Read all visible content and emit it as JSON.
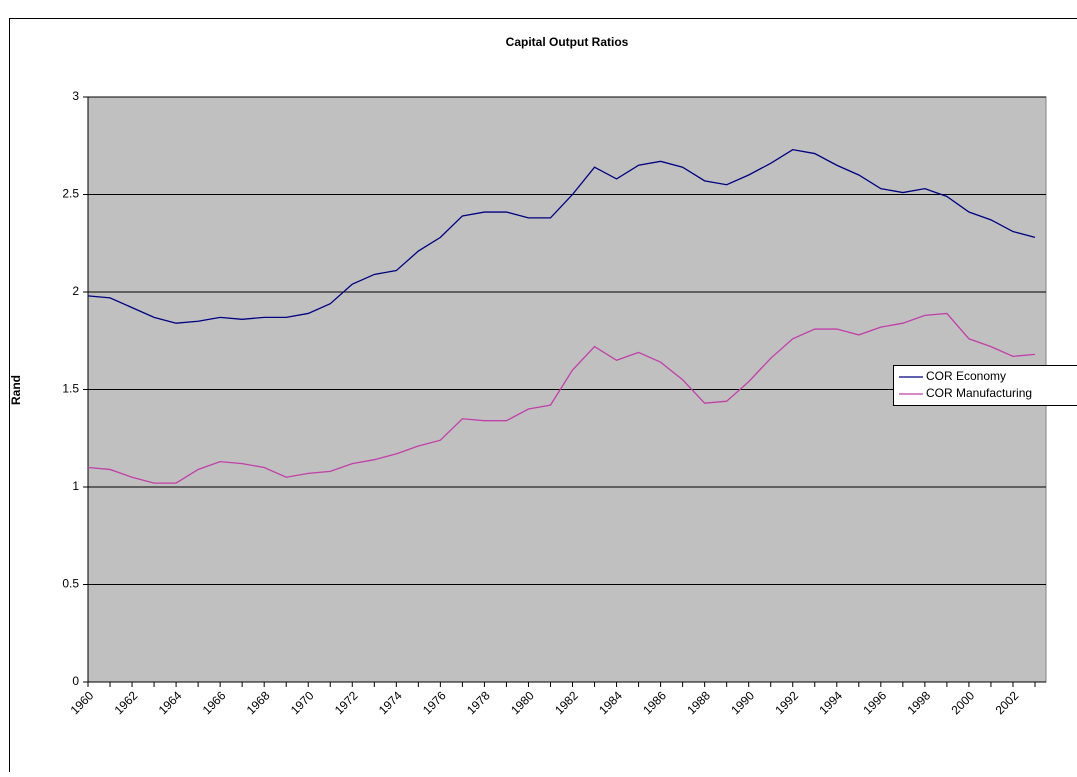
{
  "chart_data": {
    "type": "line",
    "title": "Capital Output Ratios",
    "y_label": "Rand",
    "categories": [
      "1960",
      null,
      "1962",
      null,
      "1964",
      null,
      "1966",
      null,
      "1968",
      null,
      "1970",
      null,
      "1972",
      null,
      "1974",
      null,
      "1976",
      null,
      "1978",
      null,
      "1980",
      null,
      "1982",
      null,
      "1984",
      null,
      "1986",
      null,
      "1988",
      null,
      "1990",
      null,
      "1992",
      null,
      "1994",
      null,
      "1996",
      null,
      "1998",
      null,
      "2000",
      null,
      "2002",
      null
    ],
    "series": [
      {
        "name": "COR Economy",
        "color": "#000080",
        "values": [
          1.98,
          1.97,
          1.92,
          1.87,
          1.84,
          1.85,
          1.87,
          1.86,
          1.87,
          1.87,
          1.89,
          1.94,
          2.04,
          2.09,
          2.11,
          2.21,
          2.28,
          2.39,
          2.41,
          2.41,
          2.38,
          2.38,
          2.5,
          2.64,
          2.58,
          2.65,
          2.67,
          2.64,
          2.57,
          2.55,
          2.6,
          2.66,
          2.73,
          2.71,
          2.65,
          2.6,
          2.53,
          2.51,
          2.53,
          2.49,
          2.41,
          2.37,
          2.31,
          2.28
        ]
      },
      {
        "name": "COR Manufacturing",
        "color": "#c040a8",
        "values": [
          1.1,
          1.09,
          1.05,
          1.02,
          1.02,
          1.09,
          1.13,
          1.12,
          1.1,
          1.05,
          1.07,
          1.08,
          1.12,
          1.14,
          1.17,
          1.21,
          1.24,
          1.35,
          1.34,
          1.34,
          1.4,
          1.42,
          1.6,
          1.72,
          1.65,
          1.69,
          1.64,
          1.55,
          1.43,
          1.44,
          1.54,
          1.66,
          1.76,
          1.81,
          1.81,
          1.78,
          1.82,
          1.84,
          1.88,
          1.89,
          1.76,
          1.72,
          1.67,
          1.68
        ]
      }
    ],
    "ylim": [
      0,
      3
    ],
    "yticks": [
      0,
      0.5,
      1,
      1.5,
      2,
      2.5,
      3
    ],
    "grid": true,
    "legend": "right"
  }
}
